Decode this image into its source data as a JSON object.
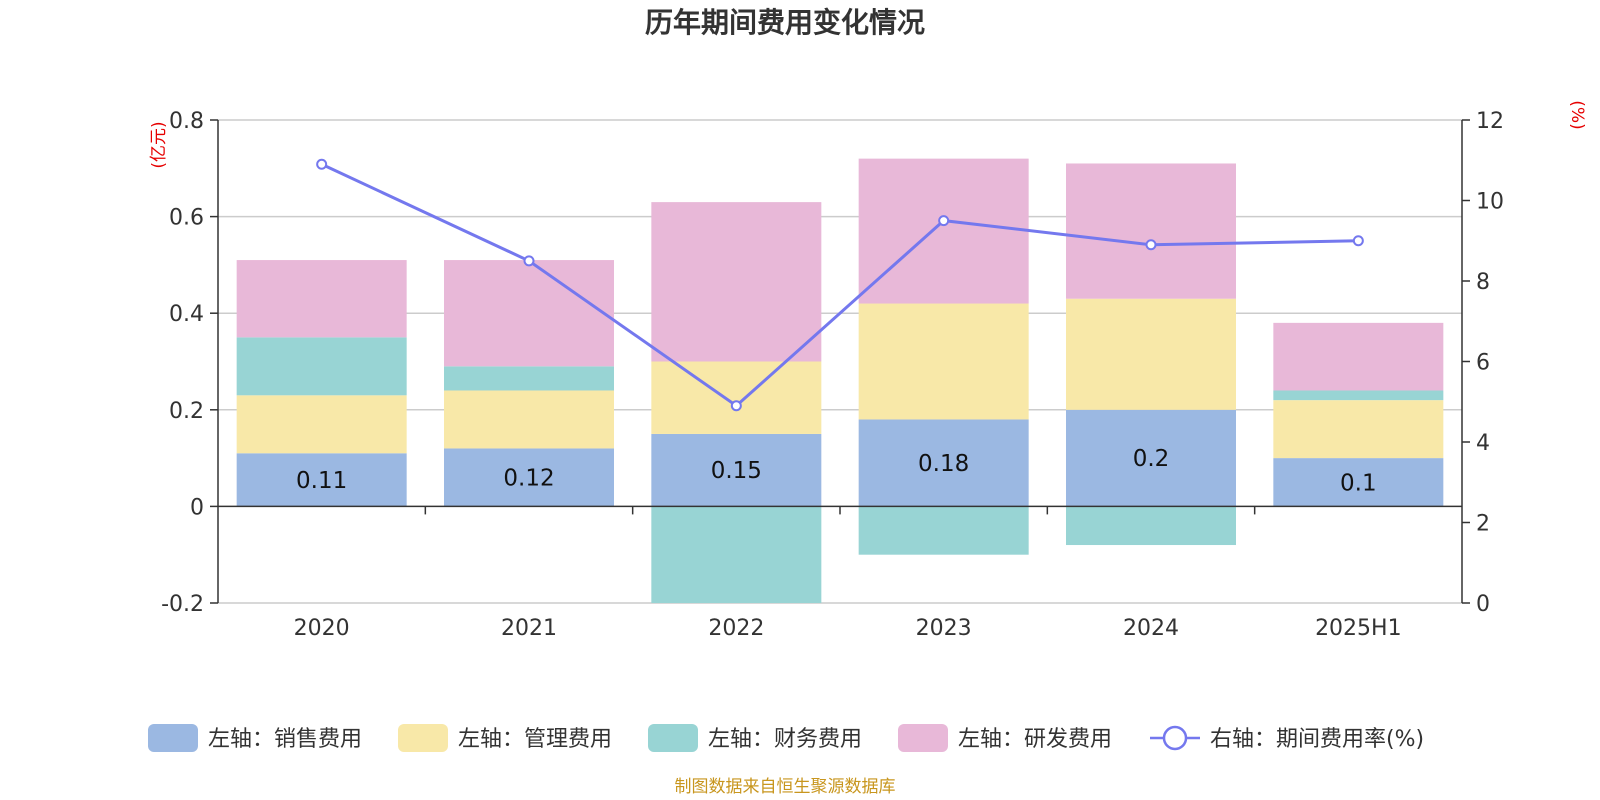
{
  "chart_data": {
    "type": "bar",
    "title": "历年期间费用变化情况",
    "left_unit": "(亿元)",
    "right_unit": "(%)",
    "categories": [
      "2020",
      "2021",
      "2022",
      "2023",
      "2024",
      "2025H1"
    ],
    "left_axis": {
      "min": -0.2,
      "max": 0.8,
      "ticks": [
        -0.2,
        0,
        0.2,
        0.4,
        0.6,
        0.8
      ]
    },
    "right_axis": {
      "min": 0,
      "max": 12,
      "ticks": [
        0,
        2,
        4,
        6,
        8,
        10,
        12
      ]
    },
    "series": [
      {
        "name": "左轴：销售费用",
        "axis": "left",
        "kind": "bar",
        "color": "#9bb8e2",
        "values": [
          0.11,
          0.12,
          0.15,
          0.18,
          0.2,
          0.1
        ],
        "labels": [
          "0.11",
          "0.12",
          "0.15",
          "0.18",
          "0.2",
          "0.1"
        ]
      },
      {
        "name": "左轴：管理费用",
        "axis": "left",
        "kind": "bar",
        "color": "#f8e8a8",
        "values": [
          0.12,
          0.12,
          0.15,
          0.24,
          0.23,
          0.12
        ]
      },
      {
        "name": "左轴：财务费用",
        "axis": "left",
        "kind": "bar",
        "color": "#98d4d4",
        "values": [
          0.12,
          0.05,
          -0.2,
          -0.1,
          -0.08,
          0.02
        ]
      },
      {
        "name": "左轴：研发费用",
        "axis": "left",
        "kind": "bar",
        "color": "#e8b8d8",
        "values": [
          0.16,
          0.22,
          0.33,
          0.3,
          0.28,
          0.14
        ]
      },
      {
        "name": "右轴：期间费用率(%)",
        "axis": "right",
        "kind": "line",
        "color": "#7478ee",
        "values": [
          10.9,
          8.5,
          4.9,
          9.5,
          8.9,
          9.0
        ]
      }
    ],
    "legend_position": "bottom",
    "grid": true
  },
  "source_note": "制图数据来自恒生聚源数据库"
}
